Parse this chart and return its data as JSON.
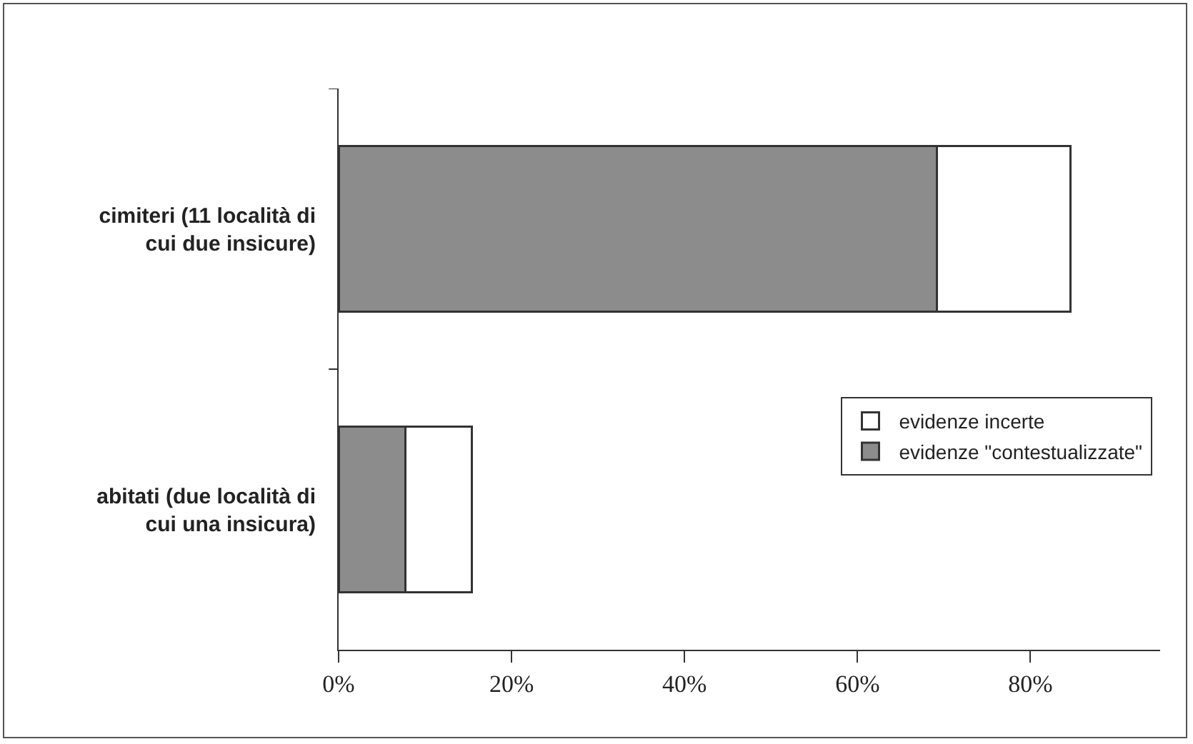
{
  "chart_data": {
    "type": "bar",
    "orientation": "horizontal",
    "stacked": true,
    "categories": [
      "cimiteri (11 località di cui due insicure)",
      "abitati (due località di cui una insicura)"
    ],
    "series": [
      {
        "name": "evidenze \"contestualizzate\"",
        "color": "#8c8c8c",
        "values": [
          69.2,
          7.7
        ]
      },
      {
        "name": "evidenze incerte",
        "color": "#ffffff",
        "values": [
          15.4,
          7.7
        ]
      }
    ],
    "xlim": [
      0,
      95
    ],
    "xticks": [
      {
        "value": 0,
        "label": "0%"
      },
      {
        "value": 20,
        "label": "20%"
      },
      {
        "value": 40,
        "label": "40%"
      },
      {
        "value": 60,
        "label": "60%"
      },
      {
        "value": 80,
        "label": "80%"
      }
    ],
    "grid": false,
    "legend": "right"
  }
}
